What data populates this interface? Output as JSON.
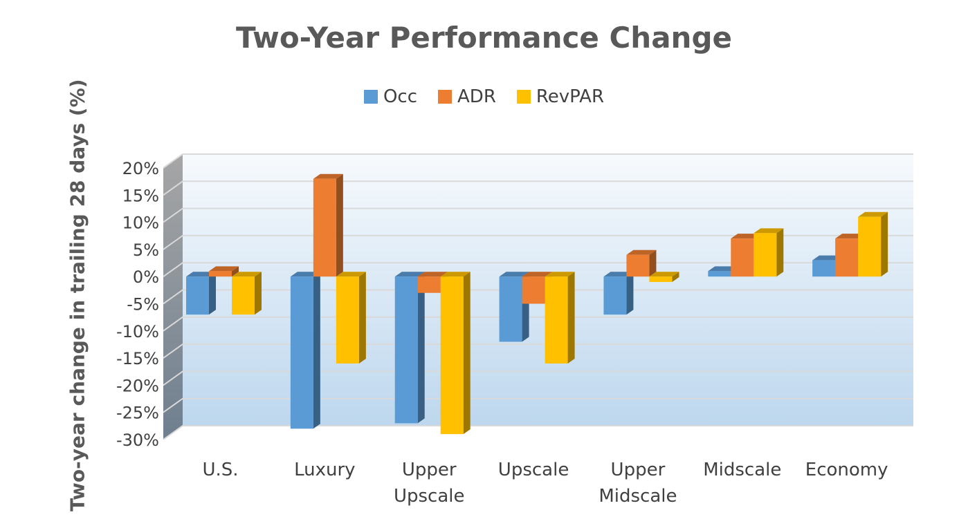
{
  "chart_data": {
    "type": "bar",
    "title": "Two-Year Performance Change",
    "xlabel": "",
    "ylabel": "Two-year change in trailing 28 days (%)",
    "ylim": [
      -30,
      20
    ],
    "y_ticks": [
      "20%",
      "15%",
      "10%",
      "5%",
      "0%",
      "-5%",
      "-10%",
      "-15%",
      "-20%",
      "-25%",
      "-30%"
    ],
    "y_tick_values": [
      20,
      15,
      10,
      5,
      0,
      -5,
      -10,
      -15,
      -20,
      -25,
      -30
    ],
    "categories": [
      [
        "U.S."
      ],
      [
        "Luxury"
      ],
      [
        "Upper",
        "Upscale"
      ],
      [
        "Upscale"
      ],
      [
        "Upper",
        "Midscale"
      ],
      [
        "Midscale"
      ],
      [
        "Economy"
      ]
    ],
    "series": [
      {
        "name": "Occ",
        "color": "#5B9BD5",
        "values": [
          -7,
          -28,
          -27,
          -12,
          -7,
          1,
          3
        ]
      },
      {
        "name": "ADR",
        "color": "#ED7D31",
        "values": [
          1,
          18,
          -3,
          -5,
          4,
          7,
          7
        ]
      },
      {
        "name": "RevPAR",
        "color": "#FFC000",
        "values": [
          -7,
          -16,
          -29,
          -16,
          -1,
          8,
          11
        ]
      }
    ],
    "grid": true,
    "legend_position": "top"
  }
}
